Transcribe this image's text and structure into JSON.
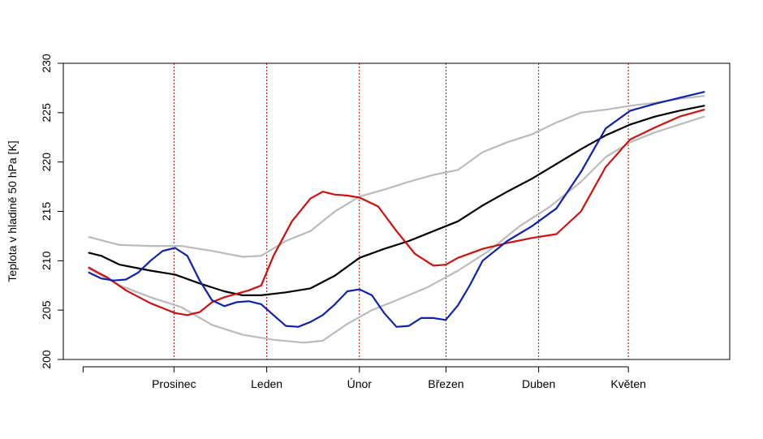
{
  "chart_data": {
    "type": "line",
    "title": "",
    "xlabel": "",
    "ylabel": "Teplota v hladině 50 hPa [K]",
    "ylim": [
      200,
      230
    ],
    "yticks": [
      200,
      205,
      210,
      215,
      220,
      225,
      230
    ],
    "xlim": [
      -0.0417,
      1.0417
    ],
    "month_labels": [
      {
        "label": "Prosinec",
        "x": 0.1382
      },
      {
        "label": "Leden",
        "x": 0.289
      },
      {
        "label": "Únor",
        "x": 0.4397
      },
      {
        "label": "Březen",
        "x": 0.5804
      },
      {
        "label": "Duben",
        "x": 0.7311
      },
      {
        "label": "Květen",
        "x": 0.8769
      }
    ],
    "vline_color": "#cc0000",
    "grid": false,
    "legend": "none",
    "series": [
      {
        "color": "#bbbbbb",
        "x": [
          0.0,
          0.05,
          0.1,
          0.15,
          0.2,
          0.25,
          0.28,
          0.32,
          0.36,
          0.4,
          0.44,
          0.48,
          0.52,
          0.56,
          0.6,
          0.64,
          0.68,
          0.72,
          0.76,
          0.8,
          0.84,
          0.88,
          0.92,
          0.96,
          1.0
        ],
        "y": [
          212.4,
          211.6,
          211.5,
          211.5,
          211.0,
          210.4,
          210.5,
          212.0,
          213.0,
          215.0,
          216.5,
          217.2,
          218.0,
          218.7,
          219.2,
          221.0,
          222.0,
          222.8,
          224.0,
          225.0,
          225.3,
          225.7,
          226.0,
          226.4,
          226.7
        ]
      },
      {
        "color": "#bbbbbb",
        "x": [
          0.0,
          0.05,
          0.1,
          0.15,
          0.2,
          0.25,
          0.3,
          0.35,
          0.38,
          0.42,
          0.46,
          0.5,
          0.55,
          0.6,
          0.65,
          0.7,
          0.75,
          0.8,
          0.84,
          0.88,
          0.92,
          0.96,
          1.0
        ],
        "y": [
          209.2,
          207.5,
          206.3,
          205.3,
          203.5,
          202.5,
          202.0,
          201.7,
          201.9,
          203.6,
          205.0,
          206.0,
          207.3,
          209.0,
          211.0,
          213.5,
          215.5,
          218.0,
          220.5,
          222.0,
          223.0,
          223.8,
          224.6
        ]
      },
      {
        "color": "#000000",
        "x": [
          0.0,
          0.02,
          0.05,
          0.1,
          0.14,
          0.18,
          0.22,
          0.25,
          0.28,
          0.32,
          0.36,
          0.4,
          0.44,
          0.48,
          0.52,
          0.56,
          0.6,
          0.64,
          0.68,
          0.72,
          0.76,
          0.8,
          0.84,
          0.88,
          0.92,
          0.96,
          1.0
        ],
        "y": [
          210.8,
          210.5,
          209.6,
          209.0,
          208.6,
          207.7,
          206.9,
          206.5,
          206.5,
          206.8,
          207.2,
          208.5,
          210.3,
          211.2,
          212.0,
          213.0,
          214.0,
          215.6,
          217.0,
          218.3,
          219.8,
          221.3,
          222.7,
          223.8,
          224.6,
          225.2,
          225.7
        ]
      },
      {
        "color": "#cc1111",
        "x": [
          0.0,
          0.03,
          0.06,
          0.1,
          0.14,
          0.16,
          0.18,
          0.2,
          0.22,
          0.26,
          0.28,
          0.3,
          0.33,
          0.36,
          0.38,
          0.4,
          0.42,
          0.44,
          0.47,
          0.5,
          0.53,
          0.56,
          0.58,
          0.6,
          0.64,
          0.68,
          0.72,
          0.76,
          0.8,
          0.84,
          0.88,
          0.92,
          0.96,
          1.0
        ],
        "y": [
          209.3,
          208.3,
          207.0,
          205.7,
          204.7,
          204.5,
          204.8,
          205.8,
          206.3,
          207.0,
          207.5,
          210.5,
          214.0,
          216.3,
          217.0,
          216.7,
          216.6,
          216.4,
          215.5,
          213.0,
          210.7,
          209.5,
          209.6,
          210.3,
          211.2,
          211.8,
          212.3,
          212.7,
          215.0,
          219.5,
          222.3,
          223.5,
          224.6,
          225.3
        ]
      },
      {
        "color": "#1122aa",
        "x": [
          0.0,
          0.02,
          0.04,
          0.06,
          0.08,
          0.1,
          0.12,
          0.14,
          0.16,
          0.18,
          0.2,
          0.22,
          0.24,
          0.26,
          0.28,
          0.3,
          0.32,
          0.34,
          0.36,
          0.38,
          0.4,
          0.42,
          0.44,
          0.46,
          0.48,
          0.5,
          0.52,
          0.54,
          0.56,
          0.58,
          0.6,
          0.62,
          0.64,
          0.68,
          0.72,
          0.76,
          0.8,
          0.84,
          0.88,
          0.92,
          0.96,
          1.0
        ],
        "y": [
          208.8,
          208.2,
          208.0,
          208.1,
          208.8,
          210.0,
          211.0,
          211.3,
          210.5,
          208.0,
          206.0,
          205.4,
          205.8,
          205.9,
          205.6,
          204.5,
          203.4,
          203.3,
          203.8,
          204.5,
          205.6,
          206.9,
          207.1,
          206.5,
          204.7,
          203.3,
          203.4,
          204.2,
          204.2,
          204.0,
          205.5,
          207.6,
          210.0,
          212.0,
          213.5,
          215.3,
          219.0,
          223.4,
          225.2,
          225.9,
          226.5,
          227.1
        ]
      }
    ]
  }
}
